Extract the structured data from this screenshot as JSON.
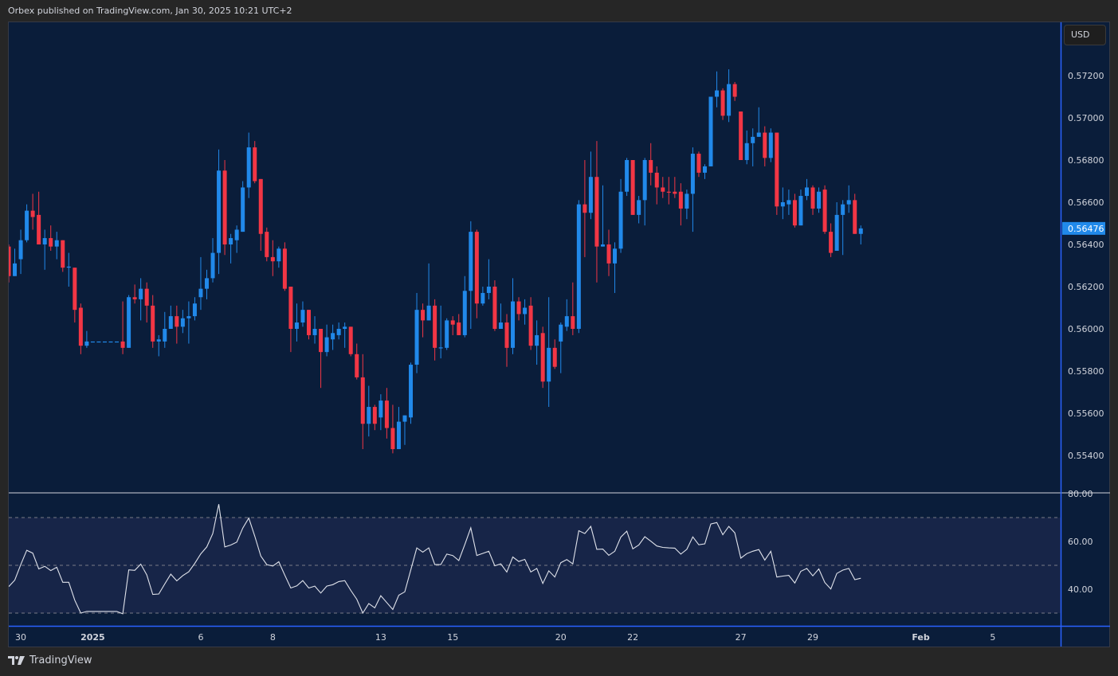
{
  "header": {
    "published": "Orbex published on TradingView.com, Jan 30, 2025 10:21 UTC+2"
  },
  "currency_button": "USD",
  "brand": "TradingView",
  "colors": {
    "up": "#2189ea",
    "down": "#f23645",
    "background": "#0a1d3a",
    "rsi_band": "#172548",
    "rsi_line": "#e0e3eb",
    "last_price_bg": "#2189ea",
    "axis_line": "#2962ff"
  },
  "chart_data": [
    {
      "type": "candlestick",
      "price_axis": {
        "ticks": [
          "0.57200",
          "0.57000",
          "0.56800",
          "0.56600",
          "0.56400",
          "0.56200",
          "0.56000",
          "0.55800",
          "0.55600",
          "0.55400"
        ],
        "range": [
          0.5532,
          0.5745
        ]
      },
      "last_price": "0.56476",
      "time_axis": {
        "labels": [
          "30",
          "2025",
          "6",
          "8",
          "13",
          "15",
          "20",
          "22",
          "27",
          "29",
          "Feb",
          "5"
        ]
      },
      "ohlc": [
        [
          0.5639,
          0.564,
          0.5622,
          0.5625
        ],
        [
          0.5625,
          0.5638,
          0.5625,
          0.5631
        ],
        [
          0.5633,
          0.5647,
          0.5626,
          0.5642
        ],
        [
          0.5642,
          0.5659,
          0.5641,
          0.5656
        ],
        [
          0.5656,
          0.5664,
          0.5647,
          0.5653
        ],
        [
          0.5654,
          0.5665,
          0.564,
          0.564
        ],
        [
          0.564,
          0.5647,
          0.5628,
          0.5643
        ],
        [
          0.5643,
          0.5649,
          0.5637,
          0.5639
        ],
        [
          0.5639,
          0.5646,
          0.5633,
          0.5642
        ],
        [
          0.5642,
          0.5642,
          0.5627,
          0.5629
        ],
        [
          0.5629,
          0.5636,
          0.562,
          0.56295
        ],
        [
          0.5629,
          0.5629,
          0.5603,
          0.5609
        ],
        [
          0.561,
          0.5612,
          0.5588,
          0.5592
        ],
        [
          0.5592,
          0.5599,
          0.5591,
          0.5594
        ],
        [
          0.5594,
          0.5594,
          0.5594,
          0.5594
        ],
        [
          0.5594,
          0.5594,
          0.5594,
          0.5594
        ],
        [
          0.5594,
          0.5594,
          0.5594,
          0.5594
        ],
        [
          0.5594,
          0.5594,
          0.5594,
          0.5594
        ],
        [
          0.5594,
          0.5594,
          0.5594,
          0.5594
        ],
        [
          0.5594,
          0.5613,
          0.5588,
          0.5591
        ],
        [
          0.5591,
          0.5616,
          0.5591,
          0.5615
        ],
        [
          0.5615,
          0.5621,
          0.5612,
          0.5614
        ],
        [
          0.5614,
          0.5624,
          0.5604,
          0.5619
        ],
        [
          0.5619,
          0.5622,
          0.5603,
          0.5611
        ],
        [
          0.5611,
          0.5616,
          0.5591,
          0.5594
        ],
        [
          0.5594,
          0.5597,
          0.5587,
          0.5595
        ],
        [
          0.5594,
          0.5608,
          0.5591,
          0.56
        ],
        [
          0.56,
          0.5611,
          0.56,
          0.5606
        ],
        [
          0.5606,
          0.5611,
          0.5593,
          0.5601
        ],
        [
          0.5601,
          0.5609,
          0.5598,
          0.5605
        ],
        [
          0.5605,
          0.5613,
          0.5593,
          0.5606
        ],
        [
          0.5606,
          0.5615,
          0.5604,
          0.5612
        ],
        [
          0.5615,
          0.5634,
          0.5609,
          0.5619
        ],
        [
          0.5619,
          0.5628,
          0.5614,
          0.5624
        ],
        [
          0.5624,
          0.5643,
          0.5622,
          0.5636
        ],
        [
          0.5636,
          0.5685,
          0.5626,
          0.5675
        ],
        [
          0.5675,
          0.568,
          0.5635,
          0.564
        ],
        [
          0.564,
          0.5645,
          0.5631,
          0.5643
        ],
        [
          0.5642,
          0.5649,
          0.5636,
          0.5647
        ],
        [
          0.5646,
          0.567,
          0.5646,
          0.5667
        ],
        [
          0.5667,
          0.5693,
          0.5662,
          0.5686
        ],
        [
          0.5686,
          0.5689,
          0.5669,
          0.567
        ],
        [
          0.5671,
          0.5671,
          0.5637,
          0.5645
        ],
        [
          0.5646,
          0.5648,
          0.5632,
          0.5634
        ],
        [
          0.5634,
          0.5642,
          0.5625,
          0.5632
        ],
        [
          0.5632,
          0.5639,
          0.5629,
          0.5638
        ],
        [
          0.5638,
          0.5641,
          0.5618,
          0.5619
        ],
        [
          0.562,
          0.562,
          0.5589,
          0.56
        ],
        [
          0.56,
          0.5612,
          0.5594,
          0.5603
        ],
        [
          0.5603,
          0.5613,
          0.5601,
          0.5609
        ],
        [
          0.5609,
          0.5609,
          0.5595,
          0.5597
        ],
        [
          0.5597,
          0.5606,
          0.5593,
          0.56
        ],
        [
          0.56,
          0.56,
          0.5572,
          0.5589
        ],
        [
          0.5589,
          0.5602,
          0.5587,
          0.5596
        ],
        [
          0.5595,
          0.5602,
          0.559,
          0.5598
        ],
        [
          0.5597,
          0.5603,
          0.5595,
          0.56
        ],
        [
          0.56,
          0.5603,
          0.5591,
          0.5601
        ],
        [
          0.5601,
          0.5601,
          0.5587,
          0.5588
        ],
        [
          0.5588,
          0.5593,
          0.5576,
          0.5577
        ],
        [
          0.5577,
          0.5588,
          0.5543,
          0.5555
        ],
        [
          0.5555,
          0.5573,
          0.5549,
          0.5563
        ],
        [
          0.5563,
          0.5564,
          0.5552,
          0.5555
        ],
        [
          0.5558,
          0.5569,
          0.5552,
          0.5566
        ],
        [
          0.5566,
          0.5572,
          0.5548,
          0.5553
        ],
        [
          0.5553,
          0.5564,
          0.5541,
          0.5543
        ],
        [
          0.5543,
          0.5563,
          0.5543,
          0.5556
        ],
        [
          0.5556,
          0.5559,
          0.5545,
          0.5559
        ],
        [
          0.5558,
          0.5584,
          0.5555,
          0.5583
        ],
        [
          0.5583,
          0.5617,
          0.5579,
          0.5609
        ],
        [
          0.5609,
          0.5612,
          0.5596,
          0.5604
        ],
        [
          0.5604,
          0.5631,
          0.5604,
          0.5611
        ],
        [
          0.5611,
          0.5614,
          0.5585,
          0.5591
        ],
        [
          0.5591,
          0.5611,
          0.5586,
          0.55912
        ],
        [
          0.5591,
          0.5605,
          0.559,
          0.5604
        ],
        [
          0.5604,
          0.5606,
          0.5597,
          0.5602
        ],
        [
          0.5603,
          0.5607,
          0.5597,
          0.5597
        ],
        [
          0.5597,
          0.5625,
          0.5596,
          0.5618
        ],
        [
          0.5618,
          0.5651,
          0.56,
          0.5646
        ],
        [
          0.5646,
          0.5647,
          0.5605,
          0.5612
        ],
        [
          0.5612,
          0.562,
          0.5611,
          0.5617
        ],
        [
          0.5617,
          0.5633,
          0.5614,
          0.562
        ],
        [
          0.562,
          0.5623,
          0.5599,
          0.56
        ],
        [
          0.56,
          0.5612,
          0.56,
          0.5603
        ],
        [
          0.5603,
          0.5607,
          0.5582,
          0.5591
        ],
        [
          0.5591,
          0.5624,
          0.5588,
          0.5613
        ],
        [
          0.5613,
          0.5615,
          0.5604,
          0.5607
        ],
        [
          0.5607,
          0.5614,
          0.5602,
          0.561
        ],
        [
          0.5611,
          0.5615,
          0.559,
          0.5592
        ],
        [
          0.5592,
          0.5604,
          0.5583,
          0.5597
        ],
        [
          0.5598,
          0.5601,
          0.5572,
          0.5575
        ],
        [
          0.5575,
          0.5615,
          0.5563,
          0.5591
        ],
        [
          0.5591,
          0.5595,
          0.5581,
          0.5582
        ],
        [
          0.5594,
          0.5603,
          0.5579,
          0.5602
        ],
        [
          0.5601,
          0.5614,
          0.5599,
          0.5606
        ],
        [
          0.5606,
          0.5622,
          0.5597,
          0.56
        ],
        [
          0.56,
          0.5661,
          0.5598,
          0.5659
        ],
        [
          0.5659,
          0.568,
          0.5634,
          0.5655
        ],
        [
          0.5655,
          0.5684,
          0.5652,
          0.5672
        ],
        [
          0.5672,
          0.5689,
          0.5622,
          0.5639
        ],
        [
          0.5639,
          0.5668,
          0.5639,
          0.564
        ],
        [
          0.564,
          0.5647,
          0.5625,
          0.5631
        ],
        [
          0.5631,
          0.5641,
          0.5617,
          0.5638
        ],
        [
          0.5638,
          0.5671,
          0.5636,
          0.5665
        ],
        [
          0.5665,
          0.5681,
          0.5663,
          0.568
        ],
        [
          0.568,
          0.568,
          0.5654,
          0.5654
        ],
        [
          0.5654,
          0.5663,
          0.565,
          0.5661
        ],
        [
          0.5661,
          0.5681,
          0.5649,
          0.568
        ],
        [
          0.568,
          0.5688,
          0.5668,
          0.5674
        ],
        [
          0.5674,
          0.5677,
          0.5659,
          0.5667
        ],
        [
          0.5667,
          0.5672,
          0.5662,
          0.5665
        ],
        [
          0.5665,
          0.5672,
          0.5659,
          0.56648
        ],
        [
          0.5665,
          0.5672,
          0.5662,
          0.5664
        ],
        [
          0.5665,
          0.5669,
          0.5649,
          0.5657
        ],
        [
          0.5657,
          0.5666,
          0.5652,
          0.5664
        ],
        [
          0.5664,
          0.5686,
          0.5646,
          0.5683
        ],
        [
          0.5683,
          0.5684,
          0.5672,
          0.5674
        ],
        [
          0.5674,
          0.5678,
          0.5671,
          0.5677
        ],
        [
          0.5677,
          0.571,
          0.5677,
          0.571
        ],
        [
          0.571,
          0.5722,
          0.5705,
          0.5713
        ],
        [
          0.5713,
          0.5714,
          0.5699,
          0.5701
        ],
        [
          0.5701,
          0.5723,
          0.5698,
          0.5716
        ],
        [
          0.5716,
          0.5717,
          0.5708,
          0.571
        ],
        [
          0.5703,
          0.5703,
          0.568,
          0.568
        ],
        [
          0.568,
          0.5694,
          0.5678,
          0.5688
        ],
        [
          0.5688,
          0.5695,
          0.5677,
          0.5691
        ],
        [
          0.5691,
          0.5705,
          0.5691,
          0.5693
        ],
        [
          0.5693,
          0.5696,
          0.5677,
          0.5681
        ],
        [
          0.5681,
          0.5695,
          0.5679,
          0.5693
        ],
        [
          0.5693,
          0.5693,
          0.5654,
          0.5658
        ],
        [
          0.5658,
          0.5667,
          0.5652,
          0.566
        ],
        [
          0.5659,
          0.5666,
          0.5654,
          0.5661
        ],
        [
          0.5661,
          0.5664,
          0.5648,
          0.5649
        ],
        [
          0.5649,
          0.5666,
          0.5649,
          0.5663
        ],
        [
          0.5663,
          0.5671,
          0.5661,
          0.5667
        ],
        [
          0.5667,
          0.5668,
          0.5654,
          0.5657
        ],
        [
          0.5657,
          0.5667,
          0.5655,
          0.5665
        ],
        [
          0.5666,
          0.5668,
          0.5645,
          0.5646
        ],
        [
          0.5646,
          0.565,
          0.5634,
          0.5636
        ],
        [
          0.5637,
          0.566,
          0.5637,
          0.5654
        ],
        [
          0.5654,
          0.5661,
          0.5635,
          0.5659
        ],
        [
          0.5659,
          0.5668,
          0.5655,
          0.5661
        ],
        [
          0.5661,
          0.5664,
          0.5645,
          0.5645
        ],
        [
          0.5645,
          0.5649,
          0.564,
          0.56476
        ]
      ]
    },
    {
      "type": "line",
      "value_axis": {
        "ticks": [
          "80.00",
          "60.00",
          "40.00"
        ],
        "range": [
          25,
          82
        ]
      },
      "band": {
        "upper": 70,
        "middle": 50,
        "lower": 30
      },
      "values": [
        41.1,
        43.8,
        50.3,
        56.3,
        55.1,
        48.5,
        49.6,
        47.8,
        49.2,
        42.9,
        42.9,
        35.4,
        30.0,
        30.7,
        30.7,
        30.7,
        30.7,
        30.7,
        30.7,
        29.7,
        48.1,
        47.9,
        50.5,
        46.0,
        37.8,
        38.0,
        42.2,
        46.3,
        43.5,
        45.7,
        47.3,
        50.8,
        54.8,
        57.7,
        63.3,
        75.6,
        57.7,
        58.5,
        59.7,
        65.6,
        69.8,
        62.2,
        53.9,
        50.3,
        49.7,
        51.5,
        45.9,
        40.5,
        41.4,
        43.6,
        40.5,
        41.3,
        38.4,
        41.3,
        41.9,
        43.2,
        43.6,
        39.5,
        35.8,
        30.0,
        34.0,
        32.2,
        37.3,
        34.4,
        31.5,
        37.5,
        38.9,
        48.1,
        57.3,
        55.5,
        57.3,
        50.3,
        50.3,
        54.7,
        54.1,
        52.0,
        58.7,
        65.7,
        54.1,
        55.0,
        55.9,
        49.8,
        50.6,
        47.2,
        53.5,
        51.6,
        52.5,
        47.2,
        48.7,
        42.4,
        47.7,
        45.1,
        51.1,
        52.4,
        50.6,
        64.5,
        63.3,
        66.3,
        56.7,
        56.8,
        54.2,
        55.9,
        61.8,
        64.3,
        56.9,
        58.5,
        62.0,
        60.1,
        58.1,
        57.5,
        57.3,
        57.2,
        54.7,
        56.7,
        61.9,
        58.6,
        59.0,
        67.3,
        67.9,
        62.8,
        66.3,
        63.6,
        53.0,
        54.9,
        55.9,
        56.6,
        52.2,
        55.9,
        45.1,
        45.5,
        45.8,
        42.6,
        47.5,
        48.7,
        45.6,
        48.5,
        42.8,
        40.1,
        46.6,
        48.0,
        48.7,
        44.0,
        44.6
      ]
    }
  ]
}
